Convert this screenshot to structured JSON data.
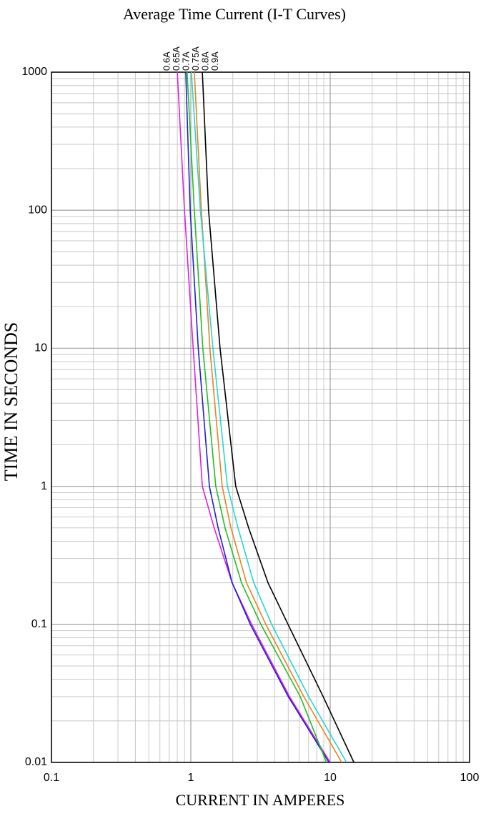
{
  "chart_data": {
    "type": "line",
    "title": "Average Time Current (I-T Curves)",
    "x_label": "CURRENT IN AMPERES",
    "y_label": "TIME IN SECONDS",
    "x_log": true,
    "y_log": true,
    "grid": true,
    "xlim": [
      0.1,
      100
    ],
    "xticks": [
      0.1,
      1,
      10,
      100
    ],
    "ylim": [
      0.01,
      1000
    ],
    "yticks": [
      0.01,
      0.1,
      1,
      10,
      100,
      1000
    ],
    "series": [
      {
        "name": "0.6A",
        "color": "#e020e0",
        "x": [
          0.8,
          0.9,
          1.04,
          1.21,
          1.47,
          1.98,
          2.73,
          5.1,
          10
        ],
        "values": [
          1000,
          100,
          10,
          1,
          0.5,
          0.2,
          0.1,
          0.03,
          0.01
        ]
      },
      {
        "name": "0.65A",
        "color": "#2020d0",
        "x": [
          0.92,
          0.99,
          1.13,
          1.36,
          1.57,
          1.98,
          2.67,
          5.0,
          9.8
        ],
        "values": [
          1000,
          100,
          10,
          1,
          0.5,
          0.2,
          0.1,
          0.03,
          0.01
        ]
      },
      {
        "name": "0.7A",
        "color": "#20c020",
        "x": [
          0.94,
          1.06,
          1.22,
          1.51,
          1.76,
          2.31,
          3.18,
          6.1,
          9.4
        ],
        "values": [
          1000,
          100,
          10,
          1,
          0.5,
          0.2,
          0.1,
          0.03,
          0.01
        ]
      },
      {
        "name": "0.75A",
        "color": "#f08020",
        "x": [
          1.06,
          1.19,
          1.37,
          1.68,
          1.94,
          2.51,
          3.45,
          6.46,
          12.1
        ],
        "values": [
          1000,
          100,
          10,
          1,
          0.5,
          0.2,
          0.1,
          0.03,
          0.01
        ]
      },
      {
        "name": "0.8A",
        "color": "#20d8d8",
        "x": [
          1.01,
          1.17,
          1.44,
          1.83,
          2.18,
          2.83,
          3.8,
          7.0,
          13.1
        ],
        "values": [
          1000,
          100,
          10,
          1,
          0.5,
          0.2,
          0.1,
          0.03,
          0.01
        ]
      },
      {
        "name": "0.9A",
        "color": "#000000",
        "x": [
          1.21,
          1.34,
          1.62,
          2.1,
          2.6,
          3.58,
          4.98,
          8.9,
          14.8
        ],
        "values": [
          1000,
          100,
          10,
          1,
          0.5,
          0.2,
          0.1,
          0.03,
          0.01
        ]
      }
    ]
  }
}
